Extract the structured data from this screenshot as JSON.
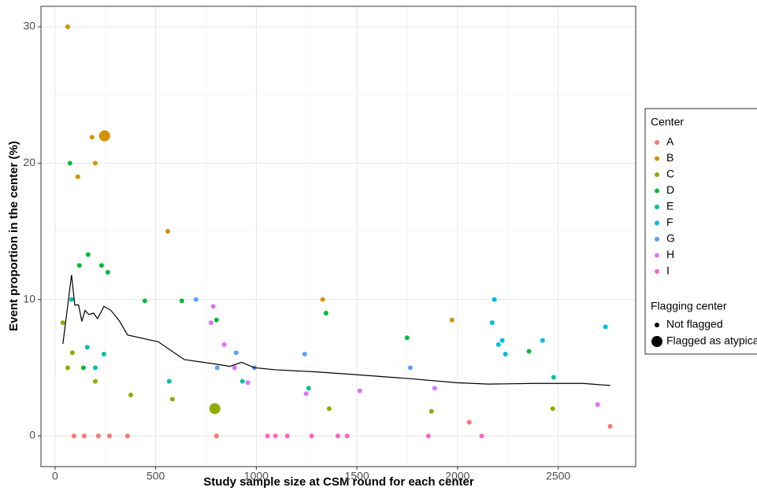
{
  "chart_data": {
    "type": "scatter",
    "x_label": "Study sample size at CSM round for each center",
    "y_label": "Event proportion in the center (%)",
    "xlim": [
      -70,
      2885
    ],
    "ylim": [
      -2.25,
      31.5
    ],
    "xticks": [
      0,
      500,
      1000,
      1500,
      2000,
      2500
    ],
    "yticks": [
      0,
      10,
      20,
      30
    ],
    "grid": true,
    "legend_title": "Center",
    "size_legend_title": "Flagging center",
    "size_legend_labels": [
      "Not flagged",
      "Flagged as atypical"
    ],
    "series": [
      {
        "name": "A",
        "color": "#F8766D",
        "x": [
          94,
          145,
          215,
          270,
          360,
          802,
          2058,
          2758
        ],
        "values": [
          0,
          0,
          0,
          0,
          0,
          0,
          1.0,
          0.7
        ],
        "flagged": [
          false,
          false,
          false,
          false,
          false,
          false,
          false,
          false
        ]
      },
      {
        "name": "B",
        "color": "#D39200",
        "x": [
          63,
          184,
          200,
          113,
          560,
          1330,
          1972,
          246
        ],
        "values": [
          30,
          21.9,
          20,
          19,
          15,
          10,
          8.5,
          22
        ],
        "flagged": [
          false,
          false,
          false,
          false,
          false,
          false,
          false,
          true
        ]
      },
      {
        "name": "C",
        "color": "#93AA00",
        "x": [
          39,
          86,
          63,
          200,
          376,
          583,
          1362,
          1870,
          2473,
          794
        ],
        "values": [
          8.3,
          6.1,
          5,
          4,
          3,
          2.7,
          2,
          1.8,
          2,
          2
        ],
        "flagged": [
          false,
          false,
          false,
          false,
          false,
          false,
          false,
          false,
          false,
          true
        ]
      },
      {
        "name": "D",
        "color": "#00BA38",
        "x": [
          74,
          121,
          164,
          231,
          262,
          446,
          630,
          802,
          1346,
          1749,
          2355,
          141
        ],
        "values": [
          20,
          12.5,
          13.3,
          12.5,
          12,
          9.9,
          9.9,
          8.5,
          9,
          7.2,
          6.2,
          5
        ],
        "flagged": [
          false,
          false,
          false,
          false,
          false,
          false,
          false,
          false,
          false,
          false,
          false,
          false
        ]
      },
      {
        "name": "E",
        "color": "#00C19F",
        "x": [
          82,
          160,
          200,
          243,
          567,
          931,
          1260,
          2477
        ],
        "values": [
          10,
          6.5,
          5,
          6,
          4,
          4,
          3.5,
          4.3
        ],
        "flagged": [
          false,
          false,
          false,
          false,
          false,
          false,
          false,
          false
        ]
      },
      {
        "name": "F",
        "color": "#00B9E3",
        "x": [
          2183,
          2172,
          2203,
          2222,
          2238,
          2422,
          2735
        ],
        "values": [
          10,
          8.3,
          6.7,
          7,
          6,
          7,
          8
        ],
        "flagged": [
          false,
          false,
          false,
          false,
          false,
          false,
          false
        ]
      },
      {
        "name": "G",
        "color": "#619CFF",
        "x": [
          700,
          806,
          900,
          990,
          1240,
          1765
        ],
        "values": [
          10,
          5,
          6.1,
          5,
          6,
          5
        ],
        "flagged": [
          false,
          false,
          false,
          false,
          false,
          false
        ]
      },
      {
        "name": "H",
        "color": "#DB72FB",
        "x": [
          786,
          775,
          841,
          892,
          958,
          1248,
          1514,
          1886,
          2696
        ],
        "values": [
          9.5,
          8.3,
          6.7,
          5,
          3.9,
          3.1,
          3.3,
          3.5,
          2.3
        ],
        "flagged": [
          false,
          false,
          false,
          false,
          false,
          false,
          false,
          false,
          false
        ]
      },
      {
        "name": "I",
        "color": "#FF61C3",
        "x": [
          1056,
          1095,
          1154,
          1275,
          1405,
          1451,
          1855,
          2120
        ],
        "values": [
          0,
          0,
          0,
          0,
          0,
          0,
          0,
          0
        ],
        "flagged": [
          false,
          false,
          false,
          false,
          false,
          false,
          false,
          false
        ]
      }
    ],
    "trend": {
      "color": "#000000",
      "x": [
        39,
        82,
        98,
        117,
        133,
        149,
        168,
        192,
        211,
        243,
        278,
        321,
        360,
        513,
        642,
        783,
        869,
        927,
        990,
        1096,
        1291,
        1487,
        1761,
        1995,
        2152,
        2387,
        2622,
        2759
      ],
      "values": [
        6.75,
        11.8,
        9.6,
        9.6,
        8.4,
        9.2,
        8.9,
        9.0,
        8.6,
        9.5,
        9.2,
        8.4,
        7.4,
        6.9,
        5.6,
        5.3,
        5.1,
        5.4,
        5.0,
        4.85,
        4.7,
        4.5,
        4.2,
        3.9,
        3.8,
        3.85,
        3.85,
        3.7
      ]
    }
  }
}
